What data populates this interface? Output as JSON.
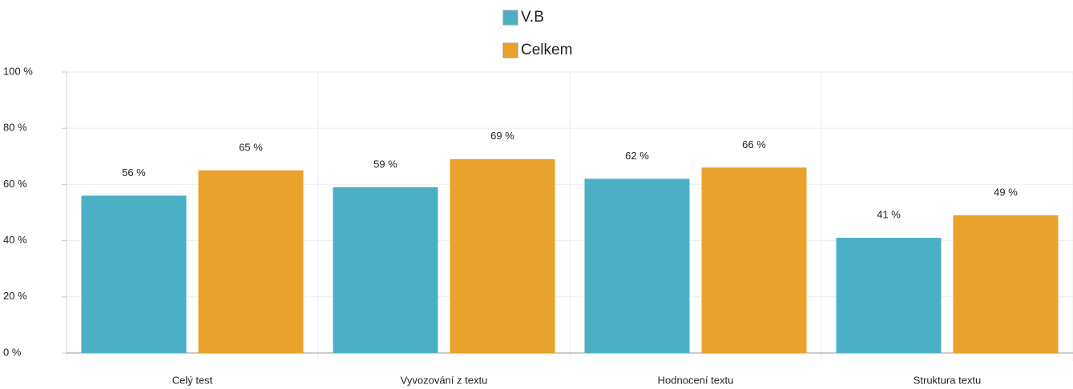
{
  "chart_data": {
    "type": "bar",
    "categories": [
      "Celý test",
      "Vyvozování z textu",
      "Hodnocení textu",
      "Struktura textu"
    ],
    "series": [
      {
        "name": "V.B",
        "color": "#4bafc6",
        "values": [
          56,
          59,
          62,
          41
        ],
        "value_labels": [
          "56 %",
          "59 %",
          "62 %",
          "41 %"
        ]
      },
      {
        "name": "Celkem",
        "color": "#e9a22b",
        "values": [
          65,
          69,
          66,
          49
        ],
        "value_labels": [
          "65 %",
          "69 %",
          "66 %",
          "49 %"
        ]
      }
    ],
    "ylim": [
      0,
      100
    ],
    "yticks": [
      {
        "value": 0,
        "label": "0 %"
      },
      {
        "value": 20,
        "label": "20 %"
      },
      {
        "value": 40,
        "label": "40 %"
      },
      {
        "value": 60,
        "label": "60 %"
      },
      {
        "value": 80,
        "label": "80 %"
      },
      {
        "value": 100,
        "label": "100 %"
      }
    ],
    "grid": true
  }
}
